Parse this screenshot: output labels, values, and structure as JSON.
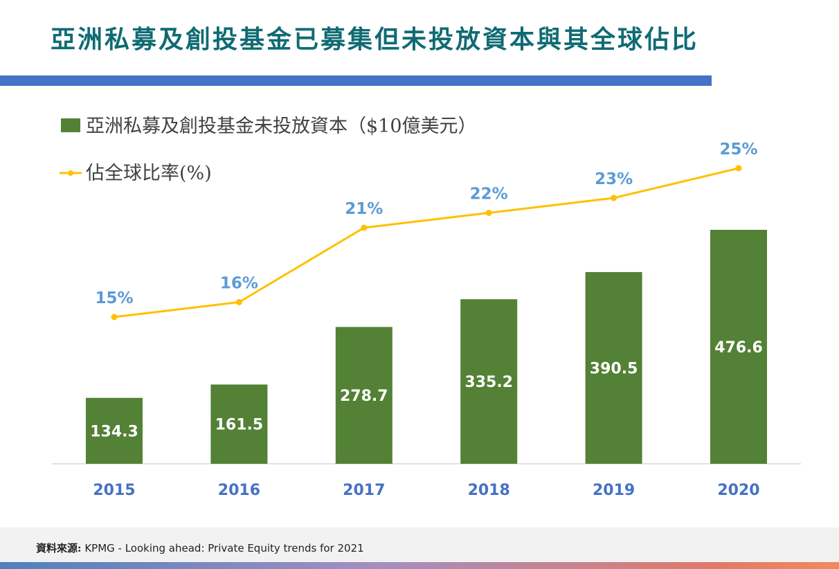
{
  "title": "亞洲私募及創投基金已募集但未投放資本與其全球佔比",
  "source": {
    "label": "資料來源:",
    "text": " KPMG - Looking ahead: Private Equity trends for 2021"
  },
  "colors": {
    "title": "#0f6b73",
    "title_bar": "#4472c4",
    "bar": "#538135",
    "line": "#ffc000",
    "tick_label": "#4472c4",
    "pct_label": "#5b9bd5"
  },
  "chart_data": {
    "type": "bar",
    "categories": [
      "2015",
      "2016",
      "2017",
      "2018",
      "2019",
      "2020"
    ],
    "series": [
      {
        "name": "亞洲私募及創投基金未投放資本（$10億美元）",
        "type": "bar",
        "values": [
          134.3,
          161.5,
          278.7,
          335.2,
          390.5,
          476.6
        ],
        "labels": [
          "134.3",
          "161.5",
          "278.7",
          "335.2",
          "390.5",
          "476.6"
        ]
      },
      {
        "name": "佔全球比率(%)",
        "type": "line",
        "values": [
          15,
          16,
          21,
          22,
          23,
          25
        ],
        "labels": [
          "15%",
          "16%",
          "21%",
          "22%",
          "23%",
          "25%"
        ]
      }
    ],
    "legend_position": "top-left",
    "grid": false
  }
}
